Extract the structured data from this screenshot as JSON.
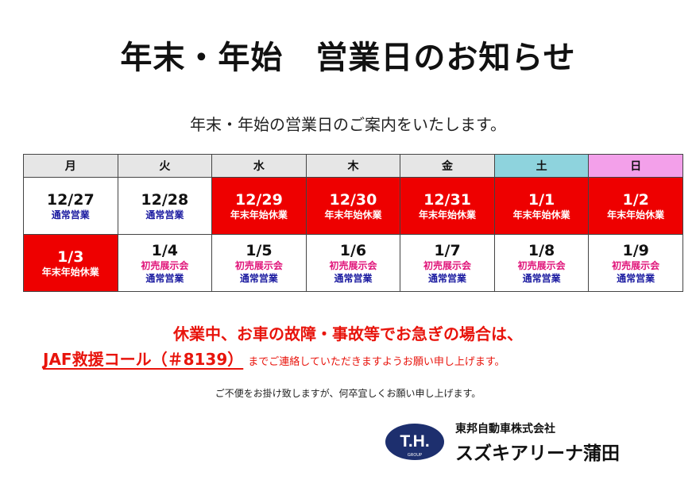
{
  "title": "年末・年始　営業日のお知らせ",
  "subtitle": "年末・年始の営業日のご案内をいたします。",
  "calendar": {
    "headers": [
      "月",
      "火",
      "水",
      "木",
      "金",
      "土",
      "日"
    ],
    "week1": [
      {
        "date": "12/27",
        "status": "通常営業"
      },
      {
        "date": "12/28",
        "status": "通常営業"
      },
      {
        "date": "12/29",
        "status": "年末年始休業"
      },
      {
        "date": "12/30",
        "status": "年末年始休業"
      },
      {
        "date": "12/31",
        "status": "年末年始休業"
      },
      {
        "date": "1/1",
        "status": "年末年始休業"
      },
      {
        "date": "1/2",
        "status": "年末年始休業"
      }
    ],
    "week2": [
      {
        "date": "1/3",
        "status": "年末年始休業"
      },
      {
        "date": "1/4",
        "event": "初売展示会",
        "status": "通常営業"
      },
      {
        "date": "1/5",
        "event": "初売展示会",
        "status": "通常営業"
      },
      {
        "date": "1/6",
        "event": "初売展示会",
        "status": "通常営業"
      },
      {
        "date": "1/7",
        "event": "初売展示会",
        "status": "通常営業"
      },
      {
        "date": "1/8",
        "event": "初売展示会",
        "status": "通常営業"
      },
      {
        "date": "1/9",
        "event": "初売展示会",
        "status": "通常営業"
      }
    ]
  },
  "notice": {
    "line1": "休業中、お車の故障・事故等でお急ぎの場合は、",
    "jaf": "JAF救援コール（＃8139）",
    "line2": "までご連絡していただきますようお願い申し上げます。"
  },
  "closing": "ご不便をお掛け致しますが、何卒宜しくお願い申し上げます。",
  "company": {
    "logo_text": "T.H.",
    "logo_sub": "GROUP",
    "corp_name": "東邦自動車株式会社",
    "store_name": "スズキアリーナ蒲田"
  },
  "colors": {
    "holiday_red": "#ee0000",
    "sat_header": "#8ed3dd",
    "sun_header": "#f3a0ea",
    "normal_blue": "#1a1aa0",
    "event_pink": "#e0157a",
    "notice_red": "#e8140c",
    "logo_navy": "#1d2f6e"
  }
}
